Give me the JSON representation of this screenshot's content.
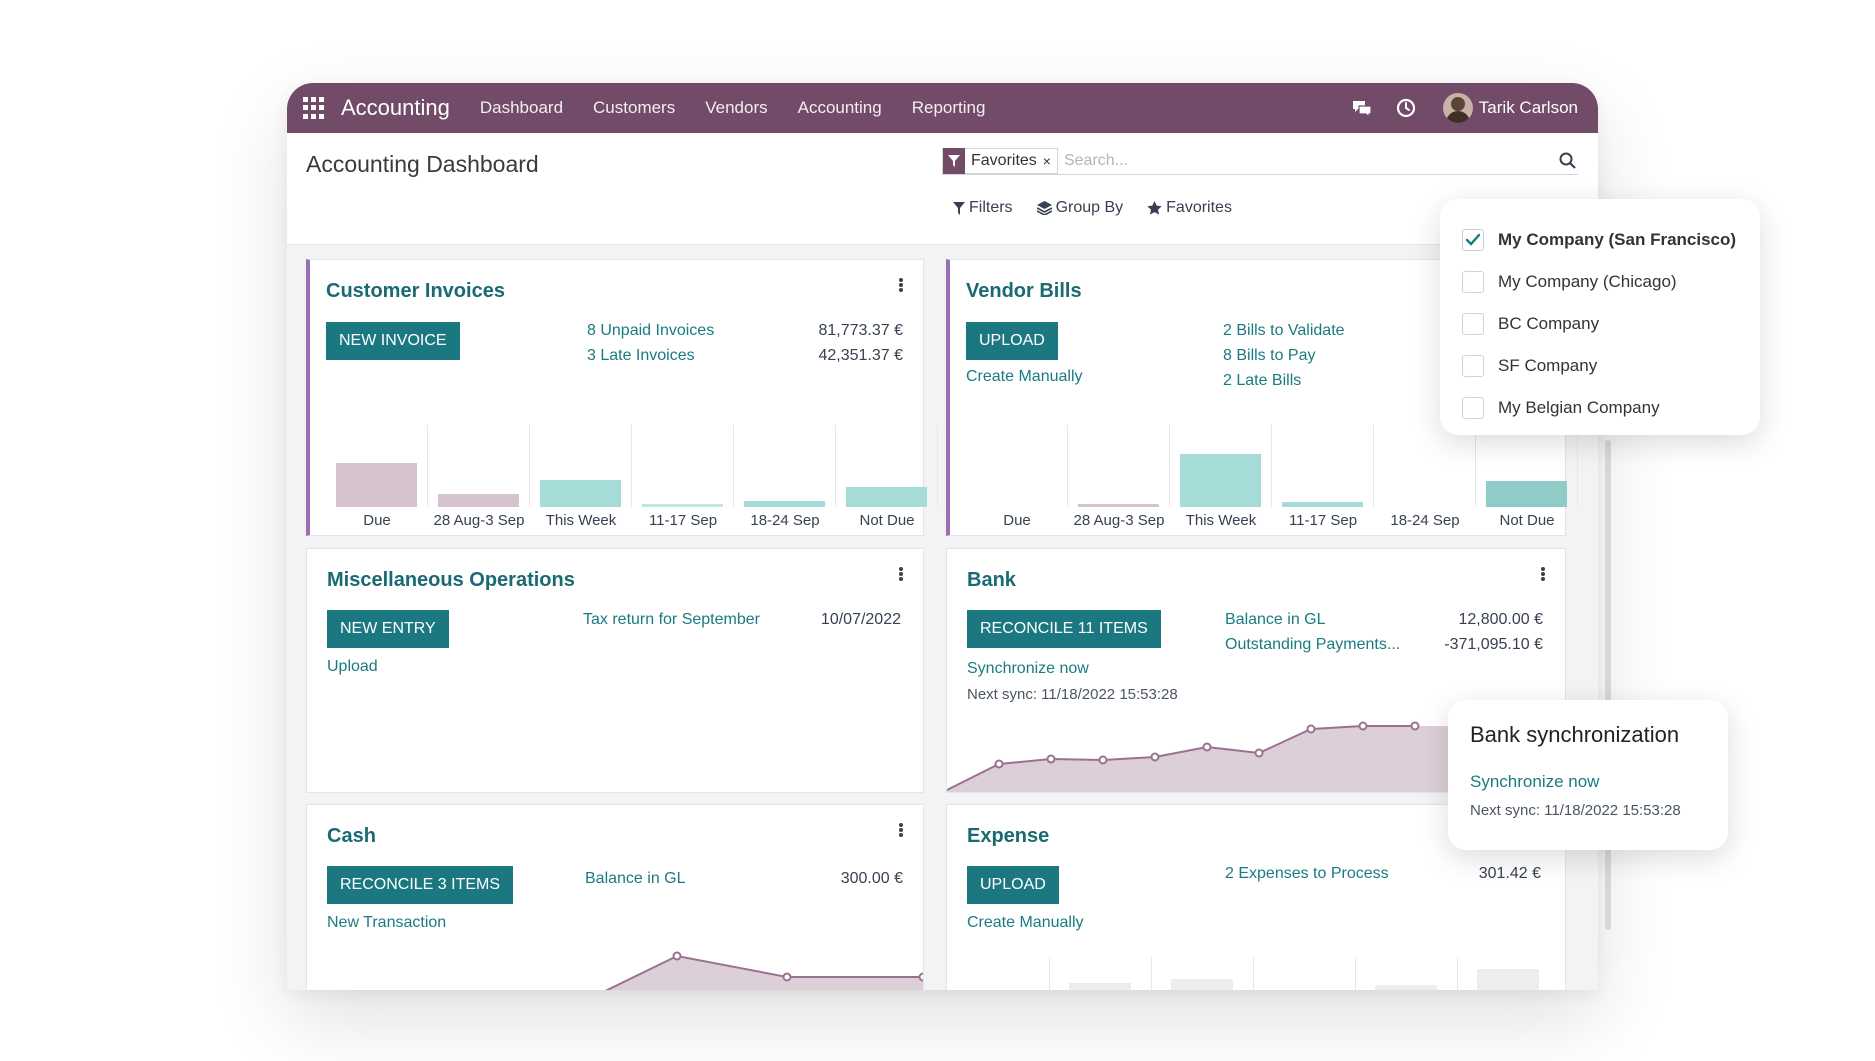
{
  "navbar": {
    "brand": "Accounting",
    "menu": [
      "Dashboard",
      "Customers",
      "Vendors",
      "Accounting",
      "Reporting"
    ],
    "user": "Tarik Carlson",
    "colors": {
      "bar": "#714B67"
    }
  },
  "control": {
    "title": "Accounting Dashboard",
    "facet": "Favorites",
    "facet_remove": "×",
    "search_placeholder": "Search...",
    "filters_label": "Filters",
    "groupby_label": "Group By",
    "favorites_label": "Favorites"
  },
  "companies": [
    {
      "name": "My Company (San Francisco)",
      "checked": true
    },
    {
      "name": "My Company (Chicago)",
      "checked": false
    },
    {
      "name": "BC Company",
      "checked": false
    },
    {
      "name": "SF Company",
      "checked": false
    },
    {
      "name": "My Belgian Company",
      "checked": false
    }
  ],
  "customer_invoices": {
    "title": "Customer Invoices",
    "button": "NEW INVOICE",
    "stats": [
      {
        "label": "8 Unpaid Invoices",
        "value": "81,773.37 €"
      },
      {
        "label": "3 Late Invoices",
        "value": "42,351.37 €"
      }
    ],
    "chart_labels": [
      "Due",
      "28 Aug-3 Sep",
      "This Week",
      "11-17 Sep",
      "18-24 Sep",
      "Not Due"
    ]
  },
  "vendor_bills": {
    "title": "Vendor Bills",
    "button": "UPLOAD",
    "secondary": "Create Manually",
    "stats": [
      "2 Bills to Validate",
      "8 Bills to Pay",
      "2 Late Bills"
    ],
    "chart_labels": [
      "Due",
      "28 Aug-3 Sep",
      "This Week",
      "11-17 Sep",
      "18-24 Sep",
      "Not Due"
    ]
  },
  "misc": {
    "title": "Miscellaneous Operations",
    "button": "NEW ENTRY",
    "secondary": "Upload",
    "item_label": "Tax return for September",
    "item_date": "10/07/2022"
  },
  "bank": {
    "title": "Bank",
    "button": "RECONCILE 11 ITEMS",
    "sync_link": "Synchronize now",
    "next_sync": "Next sync: 11/18/2022 15:53:28",
    "stats": [
      {
        "label": "Balance in GL",
        "value": "12,800.00 €"
      },
      {
        "label": "Outstanding Payments...",
        "value": "-371,095.10 €"
      }
    ]
  },
  "bank_popup": {
    "title": "Bank synchronization",
    "link": "Synchronize now",
    "next_sync": "Next sync: 11/18/2022 15:53:28"
  },
  "cash": {
    "title": "Cash",
    "button": "RECONCILE 3 ITEMS",
    "secondary": "New Transaction",
    "stat_label": "Balance in GL",
    "stat_value": "300.00 €"
  },
  "expense": {
    "title": "Expense",
    "button": "UPLOAD",
    "secondary": "Create Manually",
    "stat_label": "2 Expenses to Process",
    "stat_value": "301.42 €"
  }
}
